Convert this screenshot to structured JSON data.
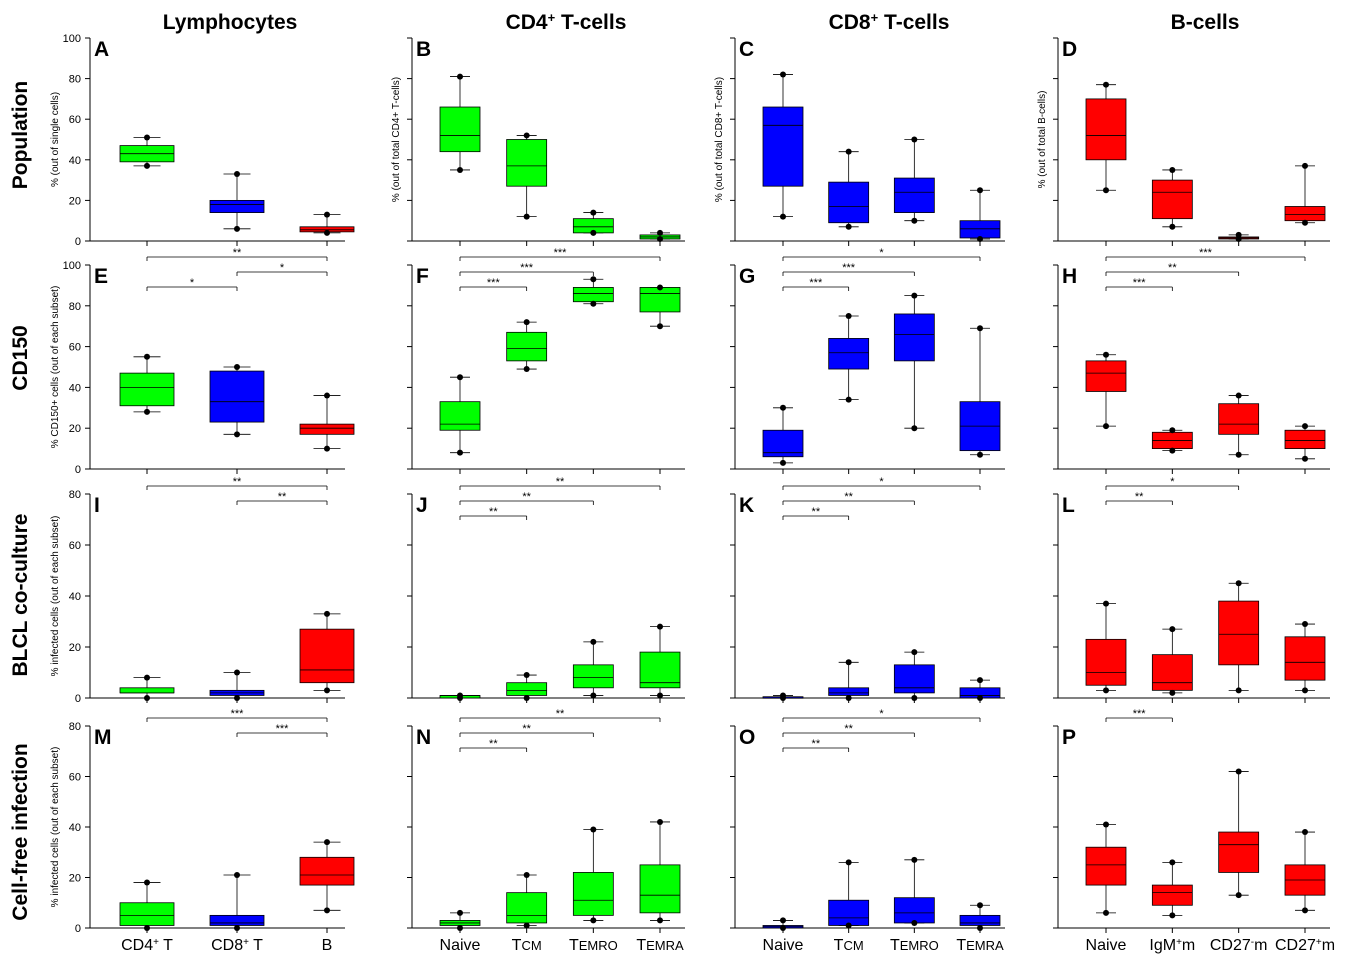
{
  "column_titles": [
    "Lymphocytes",
    "CD4+ T-cells",
    "CD8+ T-cells",
    "B-cells"
  ],
  "row_titles": [
    "Population",
    "CD150",
    "BLCL co-culture",
    "Cell-free infection"
  ],
  "x_labels": {
    "lymphocytes": [
      "CD4+ T",
      "CD8+ T",
      "B"
    ],
    "t_cells": [
      "Naive",
      "TCM",
      "TEMRO",
      "TEMRA"
    ],
    "b_cells": [
      "Naive",
      "IgM+m",
      "CD27-m",
      "CD27+m"
    ]
  },
  "colors": {
    "green": "#00ff00",
    "blue": "#0000ff",
    "red": "#ff0000"
  },
  "chart_data": [
    {
      "type": "box",
      "panel": "A",
      "ylabel": "% (out of single cells)",
      "ylim": [
        0,
        100
      ],
      "ticks": [
        0,
        20,
        40,
        60,
        80,
        100
      ],
      "tick_labels": true,
      "categories": [
        "CD4+ T",
        "CD8+ T",
        "B"
      ],
      "colors": [
        "green",
        "blue",
        "red"
      ],
      "boxes": [
        {
          "low": 37,
          "q1": 39,
          "med": 43,
          "q3": 47,
          "high": 51
        },
        {
          "low": 6,
          "q1": 14,
          "med": 18,
          "q3": 20,
          "high": 33
        },
        {
          "low": 4,
          "q1": 4.5,
          "med": 5.5,
          "q3": 7,
          "high": 13
        }
      ],
      "sig": []
    },
    {
      "type": "box",
      "panel": "B",
      "ylabel": "% (out of total CD4+ T-cells)",
      "ylim": [
        0,
        100
      ],
      "ticks": [
        0,
        20,
        40,
        60,
        80,
        100
      ],
      "tick_labels": false,
      "categories": [
        "Naive",
        "TCM",
        "TEMRO",
        "TEMRA"
      ],
      "colors": [
        "green",
        "green",
        "green",
        "green"
      ],
      "boxes": [
        {
          "low": 35,
          "q1": 44,
          "med": 52,
          "q3": 66,
          "high": 81
        },
        {
          "low": 12,
          "q1": 27,
          "med": 37,
          "q3": 50,
          "high": 52
        },
        {
          "low": 4,
          "q1": 4,
          "med": 7,
          "q3": 11,
          "high": 14
        },
        {
          "low": 1,
          "q1": 1,
          "med": 2,
          "q3": 3,
          "high": 4
        }
      ],
      "sig": []
    },
    {
      "type": "box",
      "panel": "C",
      "ylabel": "% (out of total CD8+ T-cells)",
      "ylim": [
        0,
        100
      ],
      "ticks": [
        0,
        20,
        40,
        60,
        80,
        100
      ],
      "tick_labels": false,
      "categories": [
        "Naive",
        "TCM",
        "TEMRO",
        "TEMRA"
      ],
      "colors": [
        "blue",
        "blue",
        "blue",
        "blue"
      ],
      "boxes": [
        {
          "low": 12,
          "q1": 27,
          "med": 57,
          "q3": 66,
          "high": 82
        },
        {
          "low": 7,
          "q1": 9,
          "med": 17,
          "q3": 29,
          "high": 44
        },
        {
          "low": 10,
          "q1": 14,
          "med": 24,
          "q3": 31,
          "high": 50
        },
        {
          "low": 1,
          "q1": 1.5,
          "med": 6,
          "q3": 10,
          "high": 25
        }
      ],
      "sig": []
    },
    {
      "type": "box",
      "panel": "D",
      "ylabel": "% (out of total B-cells)",
      "ylim": [
        0,
        100
      ],
      "ticks": [
        0,
        20,
        40,
        60,
        80,
        100
      ],
      "tick_labels": false,
      "categories": [
        "Naive",
        "IgM+m",
        "CD27-m",
        "CD27+m"
      ],
      "colors": [
        "red",
        "red",
        "red",
        "red"
      ],
      "boxes": [
        {
          "low": 25,
          "q1": 40,
          "med": 52,
          "q3": 70,
          "high": 77
        },
        {
          "low": 7,
          "q1": 11,
          "med": 24,
          "q3": 30,
          "high": 35
        },
        {
          "low": 1,
          "q1": 1,
          "med": 1.5,
          "q3": 2,
          "high": 3
        },
        {
          "low": 9,
          "q1": 10,
          "med": 13,
          "q3": 17,
          "high": 37
        }
      ],
      "sig": []
    },
    {
      "type": "box",
      "panel": "E",
      "ylabel": "% CD150+ cells (out of each subset)",
      "ylim": [
        0,
        100
      ],
      "ticks": [
        0,
        20,
        40,
        60,
        80,
        100
      ],
      "tick_labels": true,
      "categories": [
        "CD4+ T",
        "CD8+ T",
        "B"
      ],
      "colors": [
        "green",
        "blue",
        "red"
      ],
      "boxes": [
        {
          "low": 28,
          "q1": 31,
          "med": 40,
          "q3": 47,
          "high": 55
        },
        {
          "low": 17,
          "q1": 23,
          "med": 33,
          "q3": 48,
          "high": 50
        },
        {
          "low": 10,
          "q1": 17,
          "med": 20,
          "q3": 22,
          "high": 36
        }
      ],
      "sig": [
        {
          "from": 1,
          "to": 3,
          "label": "**"
        },
        {
          "from": 2,
          "to": 3,
          "label": "*"
        },
        {
          "from": 1,
          "to": 2,
          "label": "*"
        }
      ]
    },
    {
      "type": "box",
      "panel": "F",
      "ylabel": "",
      "ylim": [
        0,
        100
      ],
      "ticks": [
        0,
        20,
        40,
        60,
        80,
        100
      ],
      "tick_labels": false,
      "categories": [
        "Naive",
        "TCM",
        "TEMRO",
        "TEMRA"
      ],
      "colors": [
        "green",
        "green",
        "green",
        "green"
      ],
      "boxes": [
        {
          "low": 8,
          "q1": 19,
          "med": 22,
          "q3": 33,
          "high": 45
        },
        {
          "low": 49,
          "q1": 53,
          "med": 59,
          "q3": 67,
          "high": 72
        },
        {
          "low": 81,
          "q1": 82,
          "med": 86,
          "q3": 89,
          "high": 93
        },
        {
          "low": 70,
          "q1": 77,
          "med": 86,
          "q3": 89,
          "high": 89
        }
      ],
      "sig": [
        {
          "from": 1,
          "to": 4,
          "label": "***"
        },
        {
          "from": 1,
          "to": 3,
          "label": "***"
        },
        {
          "from": 1,
          "to": 2,
          "label": "***"
        }
      ]
    },
    {
      "type": "box",
      "panel": "G",
      "ylabel": "",
      "ylim": [
        0,
        100
      ],
      "ticks": [
        0,
        20,
        40,
        60,
        80,
        100
      ],
      "tick_labels": false,
      "categories": [
        "Naive",
        "TCM",
        "TEMRO",
        "TEMRA"
      ],
      "colors": [
        "blue",
        "blue",
        "blue",
        "blue"
      ],
      "boxes": [
        {
          "low": 3,
          "q1": 6,
          "med": 8,
          "q3": 19,
          "high": 30
        },
        {
          "low": 34,
          "q1": 49,
          "med": 57,
          "q3": 64,
          "high": 75
        },
        {
          "low": 20,
          "q1": 53,
          "med": 66,
          "q3": 76,
          "high": 85
        },
        {
          "low": 7,
          "q1": 9,
          "med": 21,
          "q3": 33,
          "high": 69
        }
      ],
      "sig": [
        {
          "from": 1,
          "to": 4,
          "label": "*"
        },
        {
          "from": 1,
          "to": 3,
          "label": "***"
        },
        {
          "from": 1,
          "to": 2,
          "label": "***"
        }
      ]
    },
    {
      "type": "box",
      "panel": "H",
      "ylabel": "",
      "ylim": [
        0,
        100
      ],
      "ticks": [
        0,
        20,
        40,
        60,
        80,
        100
      ],
      "tick_labels": false,
      "categories": [
        "Naive",
        "IgM+m",
        "CD27-m",
        "CD27+m"
      ],
      "colors": [
        "red",
        "red",
        "red",
        "red"
      ],
      "boxes": [
        {
          "low": 21,
          "q1": 38,
          "med": 47,
          "q3": 53,
          "high": 56
        },
        {
          "low": 9,
          "q1": 10,
          "med": 14,
          "q3": 18,
          "high": 19
        },
        {
          "low": 7,
          "q1": 17,
          "med": 22,
          "q3": 32,
          "high": 36
        },
        {
          "low": 5,
          "q1": 10,
          "med": 14,
          "q3": 19,
          "high": 21
        }
      ],
      "sig": [
        {
          "from": 1,
          "to": 4,
          "label": "***"
        },
        {
          "from": 1,
          "to": 3,
          "label": "**"
        },
        {
          "from": 1,
          "to": 2,
          "label": "***"
        }
      ]
    },
    {
      "type": "box",
      "panel": "I",
      "ylabel": "% infected cells (out of each subset)",
      "ylim": [
        0,
        80
      ],
      "ticks": [
        0,
        20,
        40,
        60,
        80
      ],
      "tick_labels": true,
      "categories": [
        "CD4+ T",
        "CD8+ T",
        "B"
      ],
      "colors": [
        "green",
        "blue",
        "red"
      ],
      "boxes": [
        {
          "low": 0,
          "q1": 2,
          "med": 2,
          "q3": 4,
          "high": 8
        },
        {
          "low": 0,
          "q1": 1,
          "med": 2,
          "q3": 3,
          "high": 10
        },
        {
          "low": 3,
          "q1": 6,
          "med": 11,
          "q3": 27,
          "high": 33
        }
      ],
      "sig": [
        {
          "from": 1,
          "to": 3,
          "label": "**"
        },
        {
          "from": 2,
          "to": 3,
          "label": "**"
        }
      ]
    },
    {
      "type": "box",
      "panel": "J",
      "ylabel": "",
      "ylim": [
        0,
        80
      ],
      "ticks": [
        0,
        20,
        40,
        60,
        80
      ],
      "tick_labels": false,
      "categories": [
        "Naive",
        "TCM",
        "TEMRO",
        "TEMRA"
      ],
      "colors": [
        "green",
        "green",
        "green",
        "green"
      ],
      "boxes": [
        {
          "low": 0,
          "q1": 0,
          "med": 1,
          "q3": 1,
          "high": 1
        },
        {
          "low": 0,
          "q1": 1,
          "med": 3,
          "q3": 6,
          "high": 9
        },
        {
          "low": 1,
          "q1": 4,
          "med": 8,
          "q3": 13,
          "high": 22
        },
        {
          "low": 1,
          "q1": 4,
          "med": 6,
          "q3": 18,
          "high": 28
        }
      ],
      "sig": [
        {
          "from": 1,
          "to": 4,
          "label": "**"
        },
        {
          "from": 1,
          "to": 3,
          "label": "**"
        },
        {
          "from": 1,
          "to": 2,
          "label": "**"
        }
      ]
    },
    {
      "type": "box",
      "panel": "K",
      "ylabel": "",
      "ylim": [
        0,
        80
      ],
      "ticks": [
        0,
        20,
        40,
        60,
        80
      ],
      "tick_labels": false,
      "categories": [
        "Naive",
        "TCM",
        "TEMRO",
        "TEMRA"
      ],
      "colors": [
        "blue",
        "blue",
        "blue",
        "blue"
      ],
      "boxes": [
        {
          "low": 0,
          "q1": 0,
          "med": 0,
          "q3": 0.5,
          "high": 1
        },
        {
          "low": 0,
          "q1": 1,
          "med": 2,
          "q3": 4,
          "high": 14
        },
        {
          "low": 0,
          "q1": 2,
          "med": 4,
          "q3": 13,
          "high": 18
        },
        {
          "low": 0,
          "q1": 0,
          "med": 1,
          "q3": 4,
          "high": 7
        }
      ],
      "sig": [
        {
          "from": 1,
          "to": 4,
          "label": "*"
        },
        {
          "from": 1,
          "to": 3,
          "label": "**"
        },
        {
          "from": 1,
          "to": 2,
          "label": "**"
        }
      ]
    },
    {
      "type": "box",
      "panel": "L",
      "ylabel": "",
      "ylim": [
        0,
        80
      ],
      "ticks": [
        0,
        20,
        40,
        60,
        80
      ],
      "tick_labels": false,
      "categories": [
        "Naive",
        "IgM+m",
        "CD27-m",
        "CD27+m"
      ],
      "colors": [
        "red",
        "red",
        "red",
        "red"
      ],
      "boxes": [
        {
          "low": 3,
          "q1": 5,
          "med": 10,
          "q3": 23,
          "high": 37
        },
        {
          "low": 2,
          "q1": 3,
          "med": 6,
          "q3": 17,
          "high": 27
        },
        {
          "low": 3,
          "q1": 13,
          "med": 25,
          "q3": 38,
          "high": 45
        },
        {
          "low": 3,
          "q1": 7,
          "med": 14,
          "q3": 24,
          "high": 29
        }
      ],
      "sig": [
        {
          "from": 1,
          "to": 3,
          "label": "*"
        },
        {
          "from": 1,
          "to": 2,
          "label": "**"
        }
      ]
    },
    {
      "type": "box",
      "panel": "M",
      "ylabel": "% infected cells (out of each subset)",
      "ylim": [
        0,
        80
      ],
      "ticks": [
        0,
        20,
        40,
        60,
        80
      ],
      "tick_labels": true,
      "categories": [
        "CD4+ T",
        "CD8+ T",
        "B"
      ],
      "colors": [
        "green",
        "blue",
        "red"
      ],
      "boxes": [
        {
          "low": 0,
          "q1": 1,
          "med": 5,
          "q3": 10,
          "high": 18
        },
        {
          "low": 0,
          "q1": 1,
          "med": 2,
          "q3": 5,
          "high": 21
        },
        {
          "low": 7,
          "q1": 17,
          "med": 21,
          "q3": 28,
          "high": 34
        }
      ],
      "sig": [
        {
          "from": 1,
          "to": 3,
          "label": "***"
        },
        {
          "from": 2,
          "to": 3,
          "label": "***"
        }
      ]
    },
    {
      "type": "box",
      "panel": "N",
      "ylabel": "",
      "ylim": [
        0,
        80
      ],
      "ticks": [
        0,
        20,
        40,
        60,
        80
      ],
      "tick_labels": false,
      "categories": [
        "Naive",
        "TCM",
        "TEMRO",
        "TEMRA"
      ],
      "colors": [
        "green",
        "green",
        "green",
        "green"
      ],
      "boxes": [
        {
          "low": 0,
          "q1": 1,
          "med": 2,
          "q3": 3,
          "high": 6
        },
        {
          "low": 1,
          "q1": 2,
          "med": 5,
          "q3": 14,
          "high": 21
        },
        {
          "low": 3,
          "q1": 5,
          "med": 11,
          "q3": 22,
          "high": 39
        },
        {
          "low": 3,
          "q1": 6,
          "med": 13,
          "q3": 25,
          "high": 42
        }
      ],
      "sig": [
        {
          "from": 1,
          "to": 4,
          "label": "**"
        },
        {
          "from": 1,
          "to": 3,
          "label": "**"
        },
        {
          "from": 1,
          "to": 2,
          "label": "**"
        }
      ]
    },
    {
      "type": "box",
      "panel": "O",
      "ylabel": "",
      "ylim": [
        0,
        80
      ],
      "ticks": [
        0,
        20,
        40,
        60,
        80
      ],
      "tick_labels": false,
      "categories": [
        "Naive",
        "TCM",
        "TEMRO",
        "TEMRA"
      ],
      "colors": [
        "blue",
        "blue",
        "blue",
        "blue"
      ],
      "boxes": [
        {
          "low": 0,
          "q1": 0,
          "med": 0.5,
          "q3": 1,
          "high": 3
        },
        {
          "low": 1,
          "q1": 1,
          "med": 4,
          "q3": 11,
          "high": 26
        },
        {
          "low": 2,
          "q1": 2,
          "med": 6,
          "q3": 12,
          "high": 27
        },
        {
          "low": 0,
          "q1": 1,
          "med": 2,
          "q3": 5,
          "high": 9
        }
      ],
      "sig": [
        {
          "from": 1,
          "to": 4,
          "label": "*"
        },
        {
          "from": 1,
          "to": 3,
          "label": "**"
        },
        {
          "from": 1,
          "to": 2,
          "label": "**"
        }
      ]
    },
    {
      "type": "box",
      "panel": "P",
      "ylabel": "",
      "ylim": [
        0,
        80
      ],
      "ticks": [
        0,
        20,
        40,
        60,
        80
      ],
      "tick_labels": false,
      "categories": [
        "Naive",
        "IgM+m",
        "CD27-m",
        "CD27+m"
      ],
      "colors": [
        "red",
        "red",
        "red",
        "red"
      ],
      "boxes": [
        {
          "low": 6,
          "q1": 17,
          "med": 25,
          "q3": 32,
          "high": 41
        },
        {
          "low": 5,
          "q1": 9,
          "med": 14,
          "q3": 17,
          "high": 26
        },
        {
          "low": 13,
          "q1": 22,
          "med": 33,
          "q3": 38,
          "high": 62
        },
        {
          "low": 7,
          "q1": 13,
          "med": 19,
          "q3": 25,
          "high": 38
        }
      ],
      "sig": [
        {
          "from": 1,
          "to": 2,
          "label": "***"
        }
      ]
    }
  ]
}
